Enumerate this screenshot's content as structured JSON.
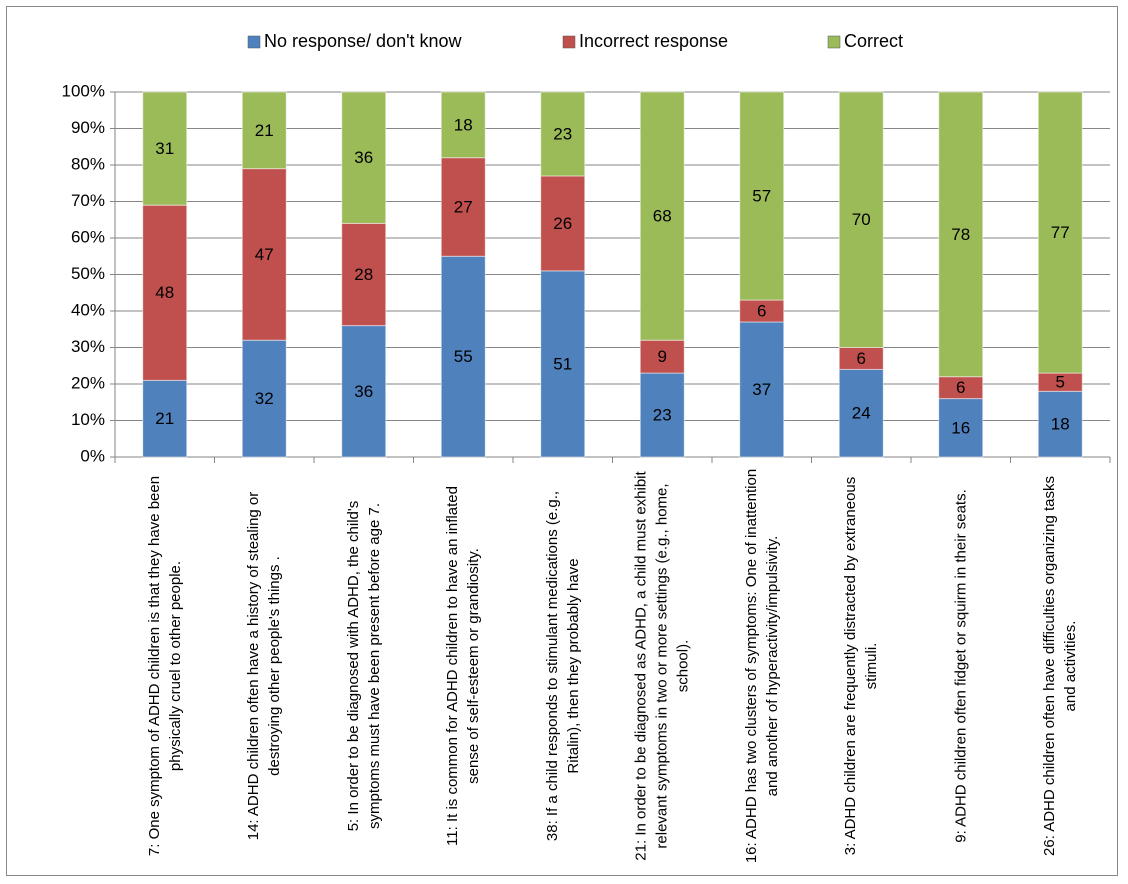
{
  "chart_data": {
    "type": "stacked-bar",
    "categories": [
      "7: One symptom of ADHD children is that they have been physically cruel to other people.",
      "14: ADHD children often have a history of stealing or destroying other people's things .",
      "5: In order to be diagnosed with ADHD, the child's symptoms must have been present before age 7.",
      "11: It is common for ADHD children to have an inflated sense of self-esteem or grandiosity.",
      "38: If a child responds to stimulant medications (e.g., Ritalin), then they probably have",
      "21: In order to be diagnosed as ADHD, a child must exhibit relevant symptoms in two or more settings (e.g., home, school).",
      "16: ADHD has two clusters of symptoms: One of inattention and another of hyperactivity/impulsivity.",
      "3: ADHD children are frequently distracted by extraneous stimuli.",
      "9: ADHD children often fidget or squirm in their seats.",
      "26: ADHD children often have difficulties organizing tasks and activities."
    ],
    "series": [
      {
        "name": "No response/ don't know",
        "color": "#4f81bd",
        "values": [
          21,
          32,
          36,
          55,
          51,
          23,
          37,
          24,
          16,
          18
        ]
      },
      {
        "name": "Incorrect response",
        "color": "#c0504d",
        "values": [
          48,
          47,
          28,
          27,
          26,
          9,
          6,
          6,
          6,
          5
        ]
      },
      {
        "name": "Correct",
        "color": "#9bbb59",
        "values": [
          31,
          21,
          36,
          18,
          23,
          68,
          57,
          70,
          78,
          77
        ]
      }
    ],
    "ylim": [
      0,
      100
    ],
    "yticks": [
      {
        "value": 0,
        "label": "0%"
      },
      {
        "value": 10,
        "label": "10%"
      },
      {
        "value": 20,
        "label": "20%"
      },
      {
        "value": 30,
        "label": "30%"
      },
      {
        "value": 40,
        "label": "40%"
      },
      {
        "value": 50,
        "label": "50%"
      },
      {
        "value": 60,
        "label": "60%"
      },
      {
        "value": 70,
        "label": "70%"
      },
      {
        "value": 80,
        "label": "80%"
      },
      {
        "value": 90,
        "label": "90%"
      },
      {
        "value": 100,
        "label": "100%"
      }
    ],
    "grid": true,
    "legend": "top"
  }
}
